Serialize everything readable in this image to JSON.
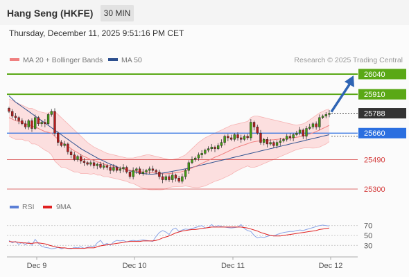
{
  "header": {
    "instrument": "Hang Seng (HKFE)",
    "timeframe": "30 MIN",
    "datetime": "Thursday, December 11, 2025 9:51:16 PM CET"
  },
  "legend": {
    "ma20": {
      "label": "MA 20 + Bollinger Bands",
      "color": "#f08080"
    },
    "ma50": {
      "label": "MA 50",
      "color": "#2d4f8e"
    }
  },
  "copyright": "Research © 2025 Trading Central",
  "rsi_legend": {
    "rsi": {
      "label": "RSI",
      "color": "#5b7fd6"
    },
    "ma9": {
      "label": "9MA",
      "color": "#e02020"
    }
  },
  "chart_data": [
    {
      "type": "candlestick",
      "ylim": [
        25260,
        26080
      ],
      "x_labels": [
        "Dec 9",
        "Dec 10",
        "Dec 11",
        "Dec 12"
      ],
      "price_levels": [
        {
          "value": 26040,
          "label": "26040",
          "kind": "target",
          "color": "#5aa816"
        },
        {
          "value": 25910,
          "label": "25910",
          "kind": "target",
          "color": "#5aa816"
        },
        {
          "value": 25788,
          "label": "25788",
          "kind": "last",
          "color": "#333333"
        },
        {
          "value": 25660,
          "label": "25660",
          "kind": "pivot",
          "color": "#2b6fe0"
        },
        {
          "value": 25490,
          "label": "25490",
          "kind": "support",
          "color": "#d43c3c"
        },
        {
          "value": 25300,
          "label": "25300",
          "kind": "support",
          "color": "#d43c3c"
        }
      ],
      "close": [
        25800,
        25770,
        25760,
        25740,
        25720,
        25700,
        25740,
        25690,
        25760,
        25720,
        25730,
        25720,
        25780,
        25800,
        25660,
        25600,
        25580,
        25590,
        25540,
        25520,
        25490,
        25510,
        25480,
        25470,
        25460,
        25470,
        25450,
        25460,
        25440,
        25450,
        25440,
        25420,
        25440,
        25420,
        25430,
        25440,
        25410,
        25380,
        25420,
        25430,
        25400,
        25410,
        25420,
        25430,
        25420,
        25410,
        25380,
        25360,
        25380,
        25360,
        25390,
        25370,
        25350,
        25380,
        25420,
        25470,
        25490,
        25500,
        25520,
        25530,
        25550,
        25560,
        25570,
        25560,
        25580,
        25600,
        25640,
        25630,
        25620,
        25650,
        25630,
        25620,
        25640,
        25630,
        25730,
        25700,
        25660,
        25600,
        25620,
        25590,
        25600,
        25580,
        25600,
        25610,
        25620,
        25640,
        25630,
        25650,
        25660,
        25680,
        25640,
        25690,
        25700,
        25720,
        25700,
        25760,
        25770,
        25780,
        25788
      ],
      "ma20": [
        25760,
        25750,
        25740,
        25735,
        25730,
        25720,
        25715,
        25705,
        25700,
        25690,
        25680,
        25670,
        25665,
        25660,
        25640,
        25620,
        25600,
        25590,
        25575,
        25560,
        25545,
        25535,
        25520,
        25510,
        25500,
        25490,
        25485,
        25475,
        25470,
        25460,
        25455,
        25450,
        25445,
        25440,
        25435,
        25430,
        25425,
        25420,
        25418,
        25415,
        25412,
        25410,
        25410,
        25408,
        25405,
        25403,
        25400,
        25398,
        25398,
        25400,
        25402,
        25405,
        25408,
        25413,
        25420,
        25428,
        25436,
        25445,
        25455,
        25465,
        25475,
        25485,
        25495,
        25505,
        25513,
        25522,
        25532,
        25542,
        25552,
        25562,
        25570,
        25578,
        25585,
        25592,
        25600,
        25605,
        25608,
        25610,
        25612,
        25614,
        25616,
        25618,
        25620,
        25622,
        25624,
        25626,
        25628,
        25630,
        25633,
        25637,
        25642,
        25648,
        25655,
        25662,
        25670,
        25680,
        25690,
        25700,
        25710
      ],
      "ma50": [
        25900,
        25880,
        25860,
        25845,
        25830,
        25815,
        25800,
        25785,
        25770,
        25755,
        25740,
        25725,
        25710,
        25695,
        25680,
        25665,
        25650,
        25635,
        25620,
        25605,
        25590,
        25575,
        25560,
        25548,
        25536,
        25524,
        25512,
        25500,
        25490,
        25480,
        25470,
        25460,
        25452,
        25444,
        25436,
        25430,
        25424,
        25418,
        25412,
        25408,
        25404,
        25400,
        25398,
        25396,
        25396,
        25398,
        25400,
        25403,
        25406,
        25410,
        25414,
        25418,
        25422,
        25426,
        25430,
        25435,
        25440,
        25445,
        25450,
        25455,
        25460,
        25465,
        25470,
        25475,
        25480,
        25485,
        25490,
        25495,
        25500,
        25505,
        25510,
        25515,
        25520,
        25525,
        25530,
        25535,
        25540,
        25545,
        25550,
        25555,
        25560,
        25565,
        25570,
        25575,
        25580,
        25585,
        25590,
        25595,
        25600,
        25605,
        25610,
        25615,
        25620,
        25625,
        25630,
        25635,
        25640,
        25645,
        25650
      ],
      "bb_upper": [
        25880,
        25870,
        25860,
        25850,
        25840,
        25830,
        25820,
        25820,
        25810,
        25800,
        25795,
        25790,
        25790,
        25800,
        25800,
        25780,
        25760,
        25740,
        25720,
        25700,
        25680,
        25660,
        25640,
        25620,
        25600,
        25585,
        25570,
        25560,
        25550,
        25540,
        25530,
        25525,
        25520,
        25515,
        25510,
        25505,
        25500,
        25500,
        25500,
        25505,
        25510,
        25515,
        25520,
        25520,
        25515,
        25510,
        25505,
        25500,
        25495,
        25490,
        25490,
        25495,
        25500,
        25510,
        25520,
        25540,
        25560,
        25580,
        25600,
        25615,
        25630,
        25640,
        25650,
        25660,
        25670,
        25680,
        25690,
        25700,
        25710,
        25715,
        25720,
        25725,
        25730,
        25735,
        25760,
        25770,
        25770,
        25765,
        25760,
        25755,
        25750,
        25745,
        25740,
        25735,
        25730,
        25725,
        25720,
        25715,
        25712,
        25715,
        25720,
        25730,
        25745,
        25760,
        25775,
        25790,
        25800,
        25810,
        25815
      ],
      "bb_lower": [
        25640,
        25630,
        25620,
        25620,
        25620,
        25610,
        25610,
        25590,
        25590,
        25580,
        25565,
        25550,
        25540,
        25520,
        25480,
        25460,
        25440,
        25440,
        25430,
        25420,
        25410,
        25410,
        25400,
        25400,
        25400,
        25395,
        25400,
        25390,
        25390,
        25380,
        25380,
        25375,
        25370,
        25365,
        25360,
        25355,
        25350,
        25340,
        25336,
        25325,
        25314,
        25305,
        25300,
        25296,
        25295,
        25296,
        25295,
        25296,
        25301,
        25310,
        25314,
        25315,
        25316,
        25316,
        25320,
        25316,
        25312,
        25310,
        25310,
        25315,
        25320,
        25330,
        25340,
        25350,
        25356,
        25364,
        25374,
        25384,
        25394,
        25409,
        25420,
        25431,
        25440,
        25449,
        25440,
        25440,
        25446,
        25455,
        25464,
        25473,
        25482,
        25491,
        25500,
        25509,
        25518,
        25527,
        25536,
        25545,
        25554,
        25559,
        25564,
        25566,
        25565,
        25564,
        25565,
        25570,
        25580,
        25590,
        25605
      ]
    },
    {
      "type": "line",
      "ylim": [
        15,
        85
      ],
      "y_ticks": [
        30,
        50,
        70
      ],
      "series": [
        {
          "name": "RSI",
          "values": [
            40,
            35,
            38,
            32,
            36,
            31,
            37,
            30,
            42,
            34,
            28,
            26,
            25,
            23,
            24,
            26,
            23,
            25,
            24,
            23,
            26,
            25,
            27,
            24,
            26,
            28,
            27,
            35,
            40,
            31,
            34,
            30,
            37,
            40,
            39,
            40,
            37,
            39,
            40,
            39,
            40,
            41,
            40,
            39,
            38,
            48,
            56,
            60,
            57,
            52,
            62,
            65,
            58,
            61,
            63,
            62,
            64,
            66,
            68,
            70,
            65,
            66,
            72,
            67,
            70,
            68,
            67,
            66,
            65,
            66,
            67,
            72,
            64,
            60,
            58,
            50,
            45,
            47,
            46,
            48,
            50,
            49,
            52,
            54,
            56,
            57,
            58,
            58,
            60,
            61,
            60,
            62,
            64,
            66,
            68,
            70,
            71,
            70,
            69
          ]
        },
        {
          "name": "9MA",
          "values": [
            38,
            37,
            37,
            36,
            35,
            35,
            34,
            34,
            35,
            35,
            34,
            33,
            31,
            29,
            27,
            26,
            25,
            25,
            24,
            24,
            24,
            24,
            24,
            24,
            25,
            25,
            25,
            27,
            29,
            30,
            31,
            32,
            33,
            34,
            35,
            36,
            37,
            38,
            38,
            38,
            38,
            39,
            39,
            39,
            39,
            40,
            42,
            45,
            47,
            49,
            52,
            55,
            57,
            59,
            60,
            61,
            62,
            62,
            63,
            64,
            65,
            66,
            67,
            67,
            67,
            67,
            67,
            67,
            67,
            67,
            67,
            67,
            66,
            65,
            63,
            61,
            59,
            56,
            54,
            52,
            50,
            49,
            49,
            49,
            50,
            51,
            52,
            53,
            54,
            55,
            56,
            57,
            58,
            59,
            60,
            62,
            63,
            64,
            65
          ]
        }
      ]
    }
  ]
}
